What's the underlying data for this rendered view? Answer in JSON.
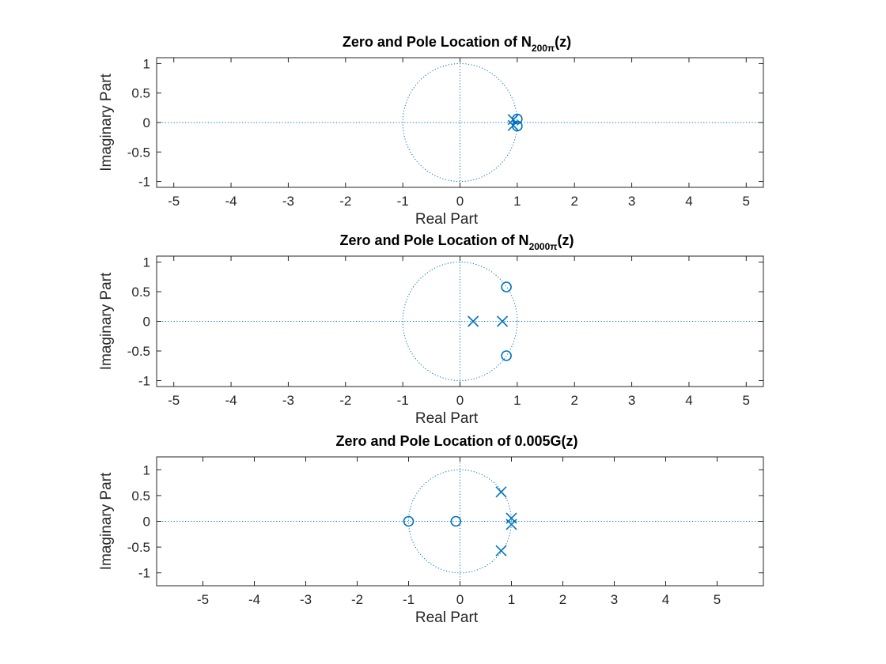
{
  "colors": {
    "marker": "#0072BD",
    "axis": "#262626",
    "background": "#ffffff"
  },
  "chart_data": [
    {
      "type": "scatter",
      "title": "Zero and Pole Location of N200π(z)",
      "title_parts": {
        "main": "Zero and Pole Location of N",
        "sub": "200π",
        "tail": "(z)"
      },
      "xlabel": "Real Part",
      "ylabel": "Imaginary Part",
      "xlim": [
        -5.3,
        5.3
      ],
      "ylim": [
        -1.1,
        1.1
      ],
      "xticks": [
        -5,
        -4,
        -3,
        -2,
        -1,
        0,
        1,
        2,
        3,
        4,
        5
      ],
      "yticks": [
        -1,
        -0.5,
        0,
        0.5,
        1
      ],
      "unit_circle": true,
      "grid": false,
      "zeros": [
        [
          1.0,
          0.06
        ],
        [
          1.0,
          -0.06
        ]
      ],
      "poles": [
        [
          0.93,
          0.05
        ],
        [
          0.93,
          -0.05
        ]
      ]
    },
    {
      "type": "scatter",
      "title": "Zero and Pole Location of N2000π(z)",
      "title_parts": {
        "main": "Zero and Pole Location of N",
        "sub": "2000π",
        "tail": "(z)"
      },
      "xlabel": "Real Part",
      "ylabel": "Imaginary Part",
      "xlim": [
        -5.3,
        5.3
      ],
      "ylim": [
        -1.1,
        1.1
      ],
      "xticks": [
        -5,
        -4,
        -3,
        -2,
        -1,
        0,
        1,
        2,
        3,
        4,
        5
      ],
      "yticks": [
        -1,
        -0.5,
        0,
        0.5,
        1
      ],
      "unit_circle": true,
      "grid": false,
      "zeros": [
        [
          0.81,
          0.58
        ],
        [
          0.81,
          -0.58
        ]
      ],
      "poles": [
        [
          0.23,
          0.0
        ],
        [
          0.74,
          0.0
        ]
      ]
    },
    {
      "type": "scatter",
      "title": "Zero and Pole Location of 0.005G(z)",
      "title_parts": {
        "main": "Zero and Pole Location of 0.005G(z)",
        "sub": "",
        "tail": ""
      },
      "xlabel": "Real Part",
      "ylabel": "Imaginary Part",
      "xlim": [
        -5.9,
        5.9
      ],
      "ylim": [
        -1.25,
        1.25
      ],
      "xticks": [
        -5,
        -4,
        -3,
        -2,
        -1,
        0,
        1,
        2,
        3,
        4,
        5
      ],
      "yticks": [
        -1,
        -0.5,
        0,
        0.5,
        1
      ],
      "unit_circle": true,
      "grid": false,
      "zeros": [
        [
          -1.0,
          0.0
        ],
        [
          -0.08,
          0.0
        ]
      ],
      "poles": [
        [
          0.8,
          0.57
        ],
        [
          0.8,
          -0.57
        ],
        [
          1.0,
          0.06
        ],
        [
          1.0,
          -0.06
        ]
      ]
    }
  ]
}
